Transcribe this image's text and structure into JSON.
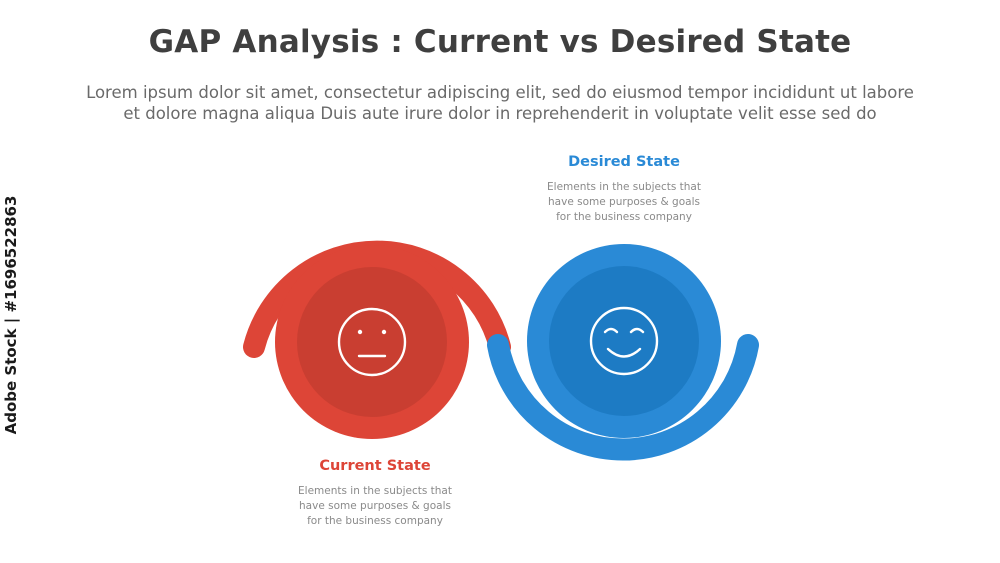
{
  "title": "GAP Analysis : Current vs Desired State",
  "subtitle": {
    "line1": "Lorem ipsum dolor sit amet, consectetur adipiscing elit, sed do eiusmod tempor incididunt ut labore",
    "line2": "et dolore magna aliqua Duis aute irure dolor in reprehenderit in voluptate velit esse sed do"
  },
  "current_state": {
    "label": "Current State",
    "description": {
      "line1": "Elements in the subjects that",
      "line2": "have  some purposes & goals",
      "line3": "for the  business company"
    },
    "icon": "neutral-face-icon",
    "color": "#dd4537",
    "inner_color": "#c93e31"
  },
  "desired_state": {
    "label": "Desired State",
    "description": {
      "line1": "Elements in the subjects that",
      "line2": "have  some purposes & goals",
      "line3": "for the  business company"
    },
    "icon": "smile-face-icon",
    "color": "#2a8ad6",
    "inner_color": "#1d7bc4"
  },
  "watermark": "Adobe Stock | #1696522863"
}
